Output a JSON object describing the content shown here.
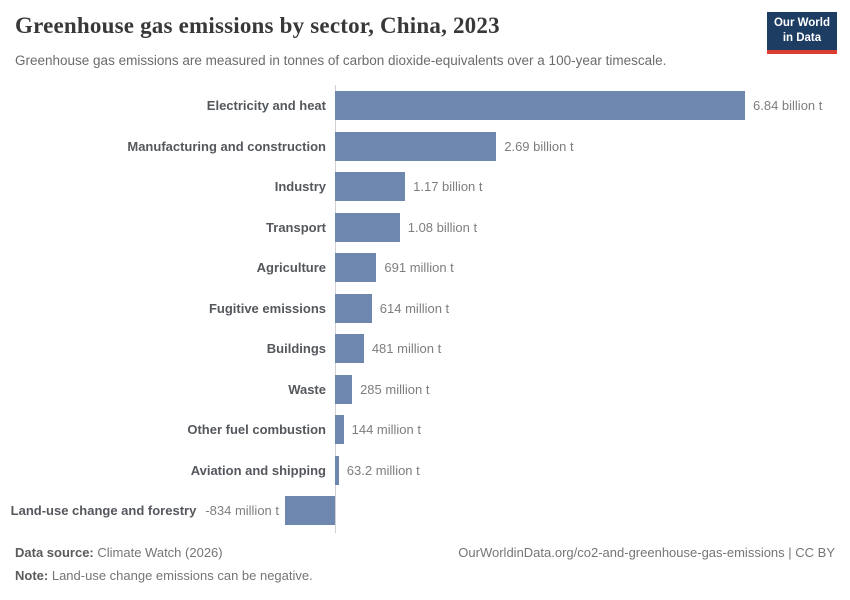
{
  "logo": {
    "line1": "Our World",
    "line2": "in Data"
  },
  "chart_data": {
    "type": "bar",
    "orientation": "horizontal",
    "title": "Greenhouse gas emissions by sector, China, 2023",
    "subtitle": "Greenhouse gas emissions are measured in tonnes of carbon dioxide-equivalents over a 100-year timescale.",
    "categories": [
      "Electricity and heat",
      "Manufacturing and construction",
      "Industry",
      "Transport",
      "Agriculture",
      "Fugitive emissions",
      "Buildings",
      "Waste",
      "Other fuel combustion",
      "Aviation and shipping",
      "Land-use change and forestry"
    ],
    "values_million_t": [
      6840,
      2690,
      1170,
      1080,
      691,
      614,
      481,
      285,
      144,
      63.2,
      -834
    ],
    "value_labels": [
      "6.84 billion t",
      "2.69 billion t",
      "1.17 billion t",
      "1.08 billion t",
      "691 million t",
      "614 million t",
      "481 million t",
      "285 million t",
      "144 million t",
      "63.2 million t",
      "-834 million t"
    ],
    "legend": "none",
    "gridlines": false,
    "zero_line": true
  },
  "footer": {
    "source_label": "Data source:",
    "source_value": "Climate Watch (2026)",
    "note_label": "Note:",
    "note_value": "Land-use change emissions can be negative.",
    "citation": "OurWorldinData.org/co2-and-greenhouse-gas-emissions | CC BY"
  },
  "colors": {
    "bar": "#6d87ae",
    "axis_line": "#d0d0d0",
    "title_text": "#383838",
    "subtitle_text": "#6b6b6b",
    "category_label": "#54585d",
    "value_label": "#7e7e7e",
    "logo_background": "#1d3d63",
    "logo_accent": "#dc3e34"
  }
}
